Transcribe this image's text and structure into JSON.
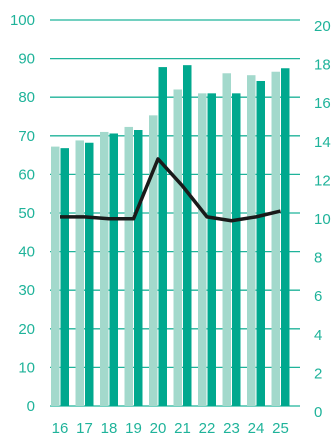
{
  "chart_data": {
    "type": "bar",
    "categories": [
      "16",
      "17",
      "18",
      "19",
      "20",
      "21",
      "22",
      "23",
      "24",
      "25"
    ],
    "series": [
      {
        "values": [
          67.2,
          68.8,
          71.0,
          72.3,
          75.3,
          82.0,
          81.0,
          86.2,
          85.7,
          86.6
        ],
        "color": "#a3d9cc",
        "axis": "left",
        "kind": "bar"
      },
      {
        "values": [
          66.8,
          68.2,
          70.6,
          71.5,
          87.8,
          88.3,
          81.0,
          81.0,
          84.2,
          87.5
        ],
        "color": "#00a88e",
        "axis": "left",
        "kind": "bar"
      },
      {
        "values": [
          9.8,
          9.8,
          9.7,
          9.7,
          12.8,
          11.4,
          9.8,
          9.6,
          9.8,
          10.1
        ],
        "color": "#1a1a1a",
        "axis": "right",
        "kind": "line"
      }
    ],
    "y_left": {
      "range": [
        0,
        100
      ],
      "ticks": [
        "0",
        "10",
        "20",
        "30",
        "40",
        "50",
        "60",
        "70",
        "80",
        "90",
        "100"
      ]
    },
    "y_right": {
      "range": [
        0,
        20
      ],
      "ticks": [
        "0",
        "2",
        "4",
        "6",
        "8",
        "10",
        "12",
        "14",
        "16",
        "18",
        "20"
      ]
    },
    "grid": true,
    "legend": "none",
    "title": "",
    "xlabel": "",
    "ylabel": ""
  }
}
